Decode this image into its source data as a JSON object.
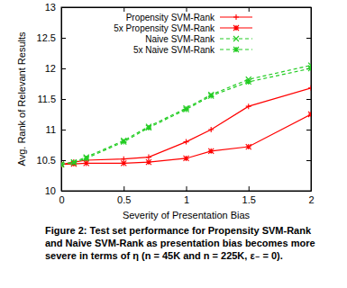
{
  "chart_data": {
    "type": "line",
    "caption": "Figure 2: Test set performance for Propensity SVM-Rank and Naive SVM-Rank as presentation bias becomes more severe in terms of η (n = 45K and n = 225K, ε₋ = 0).",
    "xlabel": "Severity of Presentation Bias",
    "ylabel": "Avg. Rank of Relevant Results",
    "x": [
      0,
      0.1,
      0.2,
      0.5,
      0.7,
      1,
      1.2,
      1.5,
      2
    ],
    "xlim": [
      0,
      2
    ],
    "xticks": [
      0,
      0.5,
      1,
      1.5,
      2
    ],
    "ylim": [
      10,
      13
    ],
    "yticks": [
      10,
      10.5,
      11,
      11.5,
      12,
      12.5,
      13
    ],
    "grid": false,
    "legend": "top-left",
    "series": [
      {
        "name": "Propensity SVM-Rank",
        "color": "#ff0000",
        "marker": "plus",
        "line_style": "solid",
        "values": [
          10.43,
          10.47,
          10.5,
          10.52,
          10.55,
          10.8,
          11.0,
          11.38,
          11.68
        ]
      },
      {
        "name": "5x Propensity SVM-Rank",
        "color": "#ff0000",
        "marker": "star",
        "line_style": "solid",
        "values": [
          10.43,
          10.44,
          10.45,
          10.45,
          10.47,
          10.53,
          10.65,
          10.72,
          11.25
        ]
      },
      {
        "name": "Naive SVM-Rank",
        "color": "#22cc22",
        "marker": "x",
        "line_style": "dashed",
        "values": [
          10.43,
          10.47,
          10.55,
          10.82,
          11.05,
          11.35,
          11.57,
          11.82,
          12.05
        ]
      },
      {
        "name": "5x Naive SVM-Rank",
        "color": "#22cc22",
        "marker": "star",
        "line_style": "dashed",
        "values": [
          10.43,
          10.46,
          10.53,
          10.8,
          11.03,
          11.33,
          11.55,
          11.78,
          12.0
        ]
      }
    ]
  }
}
